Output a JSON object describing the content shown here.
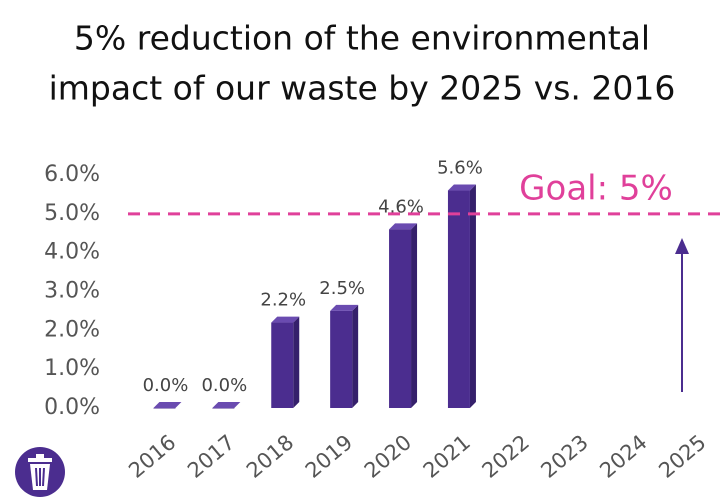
{
  "chart_data": {
    "type": "bar",
    "title": [
      "5% reduction of the environmental",
      "impact of our waste by 2025 vs. 2016"
    ],
    "categories": [
      "2016",
      "2017",
      "2018",
      "2019",
      "2020",
      "2021",
      "2022",
      "2023",
      "2024",
      "2025"
    ],
    "values": [
      0.0,
      0.0,
      2.2,
      2.5,
      4.6,
      5.6,
      null,
      null,
      null,
      null
    ],
    "value_labels": [
      "0.0%",
      "0.0%",
      "2.2%",
      "2.5%",
      "4.6%",
      "5.6%",
      null,
      null,
      null,
      null
    ],
    "color": "#4b2d8f",
    "ylim": [
      0,
      6
    ],
    "yticks": [
      {
        "value": 0,
        "label": "0.0%"
      },
      {
        "value": 1,
        "label": "1.0%"
      },
      {
        "value": 2,
        "label": "2.0%"
      },
      {
        "value": 3,
        "label": "3.0%"
      },
      {
        "value": 4,
        "label": "4.0%"
      },
      {
        "value": 5,
        "label": "5.0%"
      },
      {
        "value": 6,
        "label": "6.0%"
      }
    ],
    "goal": {
      "value": 5,
      "label": "Goal: 5%",
      "color": "#e0409a"
    },
    "grid": false
  }
}
